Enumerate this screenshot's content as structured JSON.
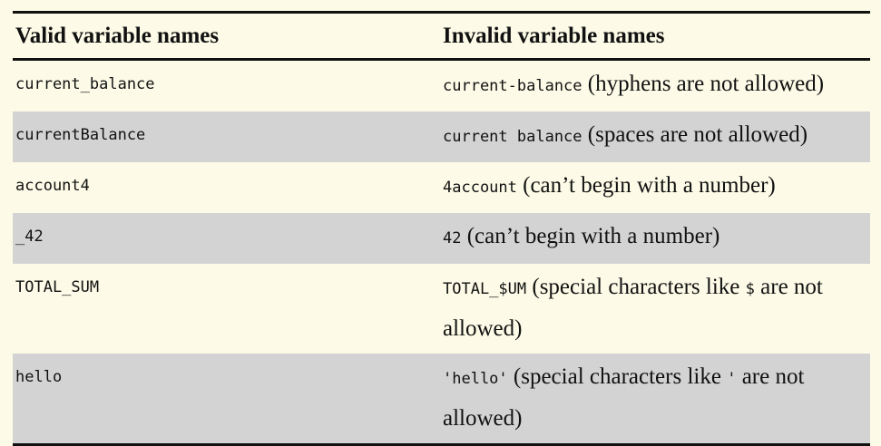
{
  "table": {
    "headers": {
      "valid": "Valid variable names",
      "invalid": "Invalid variable names"
    },
    "rows": [
      {
        "valid": "current_balance",
        "invalid_code": "current-balance",
        "invalid_text": "(hyphens are not allowed)",
        "invalid_code2": "",
        "invalid_text2": ""
      },
      {
        "valid": "currentBalance",
        "invalid_code": "current balance",
        "invalid_text": "(spaces are not allowed)",
        "invalid_code2": "",
        "invalid_text2": ""
      },
      {
        "valid": "account4",
        "invalid_code": "4account",
        "invalid_text": "(can’t begin with a number)",
        "invalid_code2": "",
        "invalid_text2": ""
      },
      {
        "valid": "_42",
        "invalid_code": "42",
        "invalid_text": "(can’t begin with a number)",
        "invalid_code2": "",
        "invalid_text2": ""
      },
      {
        "valid": "TOTAL_SUM",
        "invalid_code": "TOTAL_$UM",
        "invalid_text": "(special characters like",
        "invalid_code2": "$",
        "invalid_text2": "are not allowed)"
      },
      {
        "valid": "hello",
        "invalid_code": "'hello'",
        "invalid_text": "(special characters like",
        "invalid_code2": "'",
        "invalid_text2": "are not allowed)"
      }
    ]
  }
}
